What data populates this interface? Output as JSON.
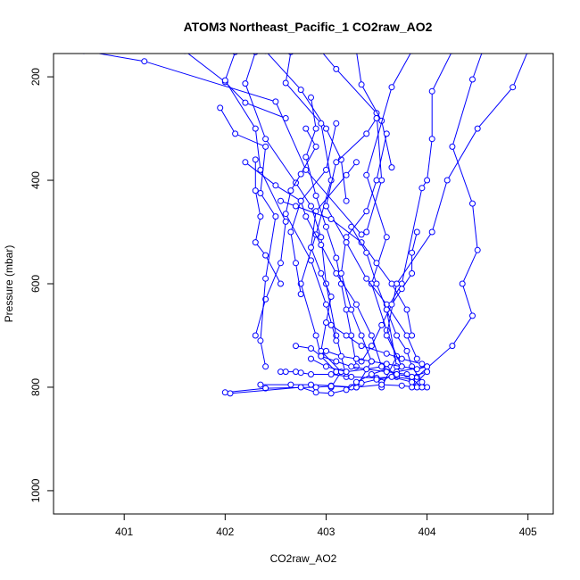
{
  "chart_data": {
    "type": "line",
    "title": "ATOM3 Northeast_Pacific_1 CO2raw_AO2",
    "xlabel": "CO2raw_AO2",
    "ylabel": "Pressure (mbar)",
    "xlim": [
      400.3,
      405.25
    ],
    "ylim": [
      1045,
      155
    ],
    "y_reversed": true,
    "x_ticks": [
      401,
      402,
      403,
      404,
      405
    ],
    "y_ticks": [
      200,
      400,
      600,
      800,
      1000
    ],
    "colors": {
      "series": "#0000ff",
      "axis": "#000000"
    },
    "series": [
      {
        "x": [
          400.6,
          401.2,
          402.5,
          402.8,
          403.35
        ],
        "y": [
          150,
          170,
          248,
          380,
          505
        ]
      },
      {
        "x": [
          401.6,
          402.0,
          402.2,
          402.6
        ],
        "y": [
          150,
          210,
          250,
          280
        ]
      },
      {
        "x": [
          402.4,
          402.75,
          403.0,
          403.15,
          403.2
        ],
        "y": [
          150,
          225,
          300,
          360,
          440
        ]
      },
      {
        "x": [
          402.95,
          403.1,
          403.5,
          403.55,
          403.4
        ],
        "y": [
          150,
          185,
          270,
          400,
          500
        ]
      },
      {
        "x": [
          403.3,
          403.35,
          403.55,
          403.65
        ],
        "y": [
          150,
          215,
          285,
          375
        ]
      },
      {
        "x": [
          403.85,
          403.65,
          403.4,
          403.6,
          403.45,
          403.6,
          403.7,
          403.55
        ],
        "y": [
          150,
          220,
          390,
          510,
          600,
          690,
          740,
          800
        ]
      },
      {
        "x": [
          404.25,
          404.05,
          404.05,
          404.0,
          403.95,
          403.75,
          403.6,
          403.7
        ],
        "y": [
          150,
          228,
          320,
          400,
          415,
          600,
          650,
          760
        ]
      },
      {
        "x": [
          404.55,
          404.45,
          404.25,
          404.45,
          404.5,
          404.35,
          404.45,
          404.25,
          403.9
        ],
        "y": [
          150,
          205,
          335,
          445,
          535,
          600,
          662,
          720,
          780
        ]
      },
      {
        "x": [
          405.0,
          404.85,
          404.5,
          404.2,
          404.05,
          403.7,
          403.6,
          403.75,
          403.55
        ],
        "y": [
          150,
          220,
          300,
          400,
          500,
          600,
          700,
          760,
          790
        ]
      },
      {
        "x": [
          402.65,
          402.6,
          402.95,
          403.05,
          402.9,
          402.75,
          402.9,
          402.95,
          403.1
        ],
        "y": [
          152,
          212,
          290,
          400,
          505,
          600,
          700,
          740,
          770
        ]
      },
      {
        "x": [
          402.1,
          402.0,
          402.3,
          402.35,
          402.6,
          402.55,
          402.4,
          402.3
        ],
        "y": [
          152,
          207,
          300,
          380,
          480,
          560,
          630,
          700
        ]
      },
      {
        "x": [
          402.3,
          402.2,
          402.4,
          402.7,
          402.85,
          402.95,
          403.0,
          403.1,
          403.2
        ],
        "y": [
          152,
          213,
          320,
          405,
          450,
          510,
          600,
          700,
          780
        ]
      },
      {
        "x": [
          401.95,
          402.1,
          402.4,
          402.35,
          402.5,
          402.4,
          402.35,
          402.4
        ],
        "y": [
          260,
          310,
          335,
          425,
          470,
          590,
          710,
          760
        ]
      },
      {
        "x": [
          402.3,
          402.3,
          402.35,
          402.3,
          402.4,
          402.55
        ],
        "y": [
          360,
          420,
          470,
          520,
          545,
          600
        ]
      },
      {
        "x": [
          402.8,
          402.9,
          402.75,
          402.65,
          402.6,
          402.85,
          403.0,
          403.1
        ],
        "y": [
          300,
          335,
          388,
          420,
          465,
          555,
          640,
          710
        ]
      },
      {
        "x": [
          403.1,
          403.0,
          402.75,
          402.65,
          402.7,
          402.75
        ],
        "y": [
          290,
          380,
          440,
          500,
          560,
          620
        ]
      },
      {
        "x": [
          403.3,
          403.2,
          402.9,
          402.85,
          402.95,
          403.05,
          403.0,
          402.95,
          403.15,
          403.05
        ],
        "y": [
          365,
          390,
          460,
          530,
          580,
          625,
          675,
          730,
          770,
          800
        ]
      },
      {
        "x": [
          402.85,
          402.9,
          402.8,
          402.9,
          403.0,
          403.1,
          403.15,
          403.2,
          403.25,
          403.3
        ],
        "y": [
          240,
          300,
          355,
          430,
          490,
          550,
          600,
          650,
          700,
          760
        ]
      },
      {
        "x": [
          402.2,
          402.5,
          402.75,
          402.8,
          402.95,
          403.1,
          403.3,
          403.45,
          403.55
        ],
        "y": [
          365,
          410,
          440,
          470,
          525,
          580,
          640,
          700,
          760
        ]
      },
      {
        "x": [
          403.6,
          403.5,
          403.4,
          403.2,
          403.15,
          403.25,
          403.35,
          403.45,
          403.3
        ],
        "y": [
          310,
          400,
          460,
          510,
          580,
          650,
          700,
          750,
          800
        ]
      },
      {
        "x": [
          403.5,
          403.4,
          403.1,
          403.0,
          403.2,
          403.4,
          403.6,
          403.8,
          403.9
        ],
        "y": [
          280,
          310,
          365,
          450,
          520,
          590,
          640,
          700,
          745
        ]
      },
      {
        "x": [
          402.55,
          402.7,
          403.05,
          403.35,
          403.5,
          403.65,
          403.8,
          403.85
        ],
        "y": [
          440,
          450,
          475,
          520,
          560,
          600,
          650,
          700
        ]
      },
      {
        "x": [
          403.9,
          403.85,
          403.85,
          403.75,
          403.65,
          403.55,
          403.45,
          403.35
        ],
        "y": [
          500,
          540,
          580,
          610,
          640,
          680,
          720,
          750
        ]
      },
      {
        "x": [
          403.25,
          403.4,
          403.5,
          403.6,
          403.7,
          403.8,
          403.85,
          403.95,
          404.0
        ],
        "y": [
          490,
          540,
          600,
          650,
          700,
          730,
          760,
          790,
          800
        ]
      },
      {
        "x": [
          403.05,
          403.2,
          403.35,
          403.6,
          403.75,
          403.95,
          404.0,
          403.7
        ],
        "y": [
          680,
          700,
          720,
          735,
          745,
          755,
          760,
          770
        ]
      },
      {
        "x": [
          402.55,
          402.6,
          402.7,
          402.75,
          402.85,
          403.05,
          403.25,
          403.5,
          403.7,
          403.85
        ],
        "y": [
          770,
          770,
          770,
          772,
          775,
          775,
          780,
          782,
          780,
          785
        ]
      },
      {
        "x": [
          402.35,
          402.65,
          402.85,
          403.05,
          403.3,
          403.55,
          403.75,
          403.9
        ],
        "y": [
          795,
          795,
          795,
          797,
          800,
          795,
          797,
          800
        ]
      },
      {
        "x": [
          402.0,
          402.4,
          402.9,
          403.05,
          403.25,
          403.35,
          403.5,
          403.65,
          403.85
        ],
        "y": [
          810,
          802,
          800,
          798,
          800,
          792,
          785,
          780,
          790
        ]
      },
      {
        "x": [
          402.05,
          402.75,
          402.9,
          403.05,
          403.2,
          403.3,
          403.45,
          403.6,
          403.7
        ],
        "y": [
          812,
          800,
          810,
          812,
          805,
          790,
          775,
          765,
          775
        ]
      },
      {
        "x": [
          402.7,
          402.85,
          402.95,
          403.1,
          403.25,
          403.4,
          403.6,
          403.8,
          403.95
        ],
        "y": [
          720,
          725,
          740,
          750,
          760,
          765,
          770,
          775,
          800
        ]
      },
      {
        "x": [
          403.0,
          403.15,
          403.3,
          403.45,
          403.6,
          403.75,
          403.9,
          404.0
        ],
        "y": [
          730,
          740,
          745,
          750,
          755,
          760,
          765,
          760
        ]
      },
      {
        "x": [
          402.85,
          403.0,
          403.2,
          403.4,
          403.55,
          403.7,
          403.85,
          404.0,
          403.85
        ],
        "y": [
          745,
          760,
          770,
          765,
          760,
          775,
          780,
          770,
          800
        ]
      }
    ]
  }
}
